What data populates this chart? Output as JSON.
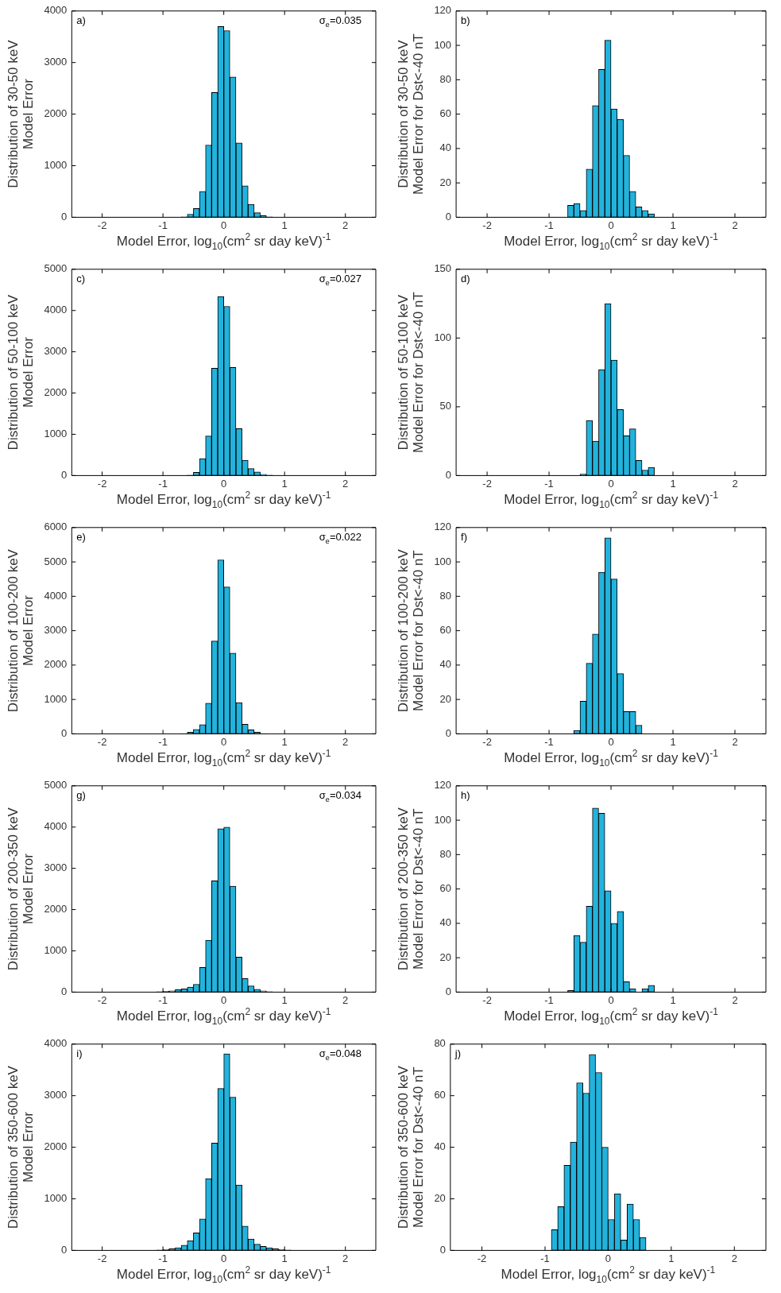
{
  "chart_data": [
    {
      "type": "histogram",
      "bins": [
        -1.2,
        -1.1,
        -1.0,
        -0.9,
        -0.8,
        -0.7,
        -0.6,
        -0.5,
        -0.4,
        -0.3,
        -0.2,
        -0.1,
        0,
        0.1,
        0.2,
        0.3,
        0.4,
        0.5,
        0.6,
        0.7,
        0.8,
        0.9,
        1.0,
        1.1,
        1.2
      ],
      "values": [
        0,
        0,
        0,
        0,
        0,
        10,
        60,
        170,
        500,
        1400,
        2420,
        3700,
        3620,
        2720,
        1440,
        610,
        250,
        90,
        30,
        10,
        0,
        0,
        0,
        0
      ],
      "color": "#22b3dd",
      "xlim": [
        -2.5,
        2.5
      ],
      "xticks": [
        -2,
        -1,
        0,
        1,
        2
      ],
      "ylim": [
        0,
        4000
      ],
      "yticks": [
        0,
        1000,
        2000,
        3000,
        4000
      ],
      "xlabel": "Model Error, log$_{10}$(cm$^{2}$ sr day keV)$^{-1}$",
      "ylabel": "Distribution of 30-50 keV\nModel Error",
      "annotations": [
        "a)",
        "σ$_{e}$=0.035"
      ]
    },
    {
      "type": "histogram",
      "bins": [
        -1.2,
        -1.1,
        -1.0,
        -0.9,
        -0.8,
        -0.7,
        -0.6,
        -0.5,
        -0.4,
        -0.3,
        -0.2,
        -0.1,
        0,
        0.1,
        0.2,
        0.3,
        0.4,
        0.5,
        0.6,
        0.7,
        0.8,
        0.9,
        1.0,
        1.1,
        1.2
      ],
      "values": [
        0,
        0,
        0,
        0,
        0,
        7,
        8,
        4,
        28,
        65,
        86,
        103,
        63,
        57,
        36,
        15,
        6,
        4,
        2,
        0,
        0,
        0,
        0,
        0
      ],
      "color": "#22b3dd",
      "xlim": [
        -2.5,
        2.5
      ],
      "xticks": [
        -2,
        -1,
        0,
        1,
        2
      ],
      "ylim": [
        0,
        120
      ],
      "yticks": [
        0,
        20,
        40,
        60,
        80,
        100,
        120
      ],
      "xlabel": "Model Error, log$_{10}$(cm$^{2}$ sr day keV)$^{-1}$",
      "ylabel": "Distribution of 30-50 keV\nModel Error for Dst<-40 nT",
      "annotations": [
        "b)"
      ]
    },
    {
      "type": "histogram",
      "bins": [
        -1.2,
        -1.1,
        -1.0,
        -0.9,
        -0.8,
        -0.7,
        -0.6,
        -0.5,
        -0.4,
        -0.3,
        -0.2,
        -0.1,
        0,
        0.1,
        0.2,
        0.3,
        0.4,
        0.5,
        0.6,
        0.7,
        0.8,
        0.9,
        1.0,
        1.1,
        1.2
      ],
      "values": [
        0,
        0,
        0,
        0,
        0,
        0,
        10,
        80,
        410,
        960,
        2600,
        4340,
        4100,
        2620,
        1140,
        370,
        170,
        90,
        30,
        10,
        0,
        0,
        0,
        0
      ],
      "color": "#22b3dd",
      "xlim": [
        -2.5,
        2.5
      ],
      "xticks": [
        -2,
        -1,
        0,
        1,
        2
      ],
      "ylim": [
        0,
        5000
      ],
      "yticks": [
        0,
        1000,
        2000,
        3000,
        4000,
        5000
      ],
      "xlabel": "Model Error, log$_{10}$(cm$^{2}$ sr day keV)$^{-1}$",
      "ylabel": "Distribution of 50-100 keV\nModel Error",
      "annotations": [
        "c)",
        "σ$_{e}$=0.027"
      ]
    },
    {
      "type": "histogram",
      "bins": [
        -1.2,
        -1.1,
        -1.0,
        -0.9,
        -0.8,
        -0.7,
        -0.6,
        -0.5,
        -0.4,
        -0.3,
        -0.2,
        -0.1,
        0,
        0.1,
        0.2,
        0.3,
        0.4,
        0.5,
        0.6,
        0.7,
        0.8,
        0.9,
        1.0,
        1.1,
        1.2
      ],
      "values": [
        0,
        0,
        0,
        0,
        0,
        0,
        0,
        1,
        40,
        25,
        77,
        125,
        84,
        48,
        29,
        34,
        11,
        4,
        6,
        0,
        0,
        0,
        0,
        0
      ],
      "color": "#22b3dd",
      "xlim": [
        -2.5,
        2.5
      ],
      "xticks": [
        -2,
        -1,
        0,
        1,
        2
      ],
      "ylim": [
        0,
        150
      ],
      "yticks": [
        0,
        50,
        100,
        150
      ],
      "xlabel": "Model Error, log$_{10}$(cm$^{2}$ sr day keV)$^{-1}$",
      "ylabel": "Distribution of 50-100 keV\nModel Error for Dst<-40 nT",
      "annotations": [
        "d)"
      ]
    },
    {
      "type": "histogram",
      "bins": [
        -1.2,
        -1.1,
        -1.0,
        -0.9,
        -0.8,
        -0.7,
        -0.6,
        -0.5,
        -0.4,
        -0.3,
        -0.2,
        -0.1,
        0,
        0.1,
        0.2,
        0.3,
        0.4,
        0.5,
        0.6,
        0.7,
        0.8,
        0.9,
        1.0,
        1.1,
        1.2
      ],
      "values": [
        0,
        0,
        0,
        0,
        0,
        10,
        50,
        130,
        270,
        890,
        2700,
        5060,
        4270,
        2350,
        910,
        280,
        120,
        50,
        10,
        0,
        0,
        0,
        0,
        0
      ],
      "color": "#22b3dd",
      "xlim": [
        -2.5,
        2.5
      ],
      "xticks": [
        -2,
        -1,
        0,
        1,
        2
      ],
      "ylim": [
        0,
        6000
      ],
      "yticks": [
        0,
        1000,
        2000,
        3000,
        4000,
        5000,
        6000
      ],
      "xlabel": "Model Error, log$_{10}$(cm$^{2}$ sr day keV)$^{-1}$",
      "ylabel": "Distribution of 100-200 keV\nModel Error",
      "annotations": [
        "e)",
        "σ$_{e}$=0.022"
      ]
    },
    {
      "type": "histogram",
      "bins": [
        -1.2,
        -1.1,
        -1.0,
        -0.9,
        -0.8,
        -0.7,
        -0.6,
        -0.5,
        -0.4,
        -0.3,
        -0.2,
        -0.1,
        0,
        0.1,
        0.2,
        0.3,
        0.4,
        0.5,
        0.6,
        0.7,
        0.8,
        0.9,
        1.0,
        1.1,
        1.2
      ],
      "values": [
        0,
        0,
        0,
        0,
        0,
        0,
        2,
        19,
        41,
        58,
        94,
        114,
        90,
        35,
        13,
        13,
        5,
        0,
        0,
        0,
        0,
        0,
        0,
        0
      ],
      "color": "#22b3dd",
      "xlim": [
        -2.5,
        2.5
      ],
      "xticks": [
        -2,
        -1,
        0,
        1,
        2
      ],
      "ylim": [
        0,
        120
      ],
      "yticks": [
        0,
        20,
        40,
        60,
        80,
        100,
        120
      ],
      "xlabel": "Model Error, log$_{10}$(cm$^{2}$ sr day keV)$^{-1}$",
      "ylabel": "Distribution of 100-200 keV\nModel Error for Dst<-40 nT",
      "annotations": [
        "f)"
      ]
    },
    {
      "type": "histogram",
      "bins": [
        -1.2,
        -1.1,
        -1.0,
        -0.9,
        -0.8,
        -0.7,
        -0.6,
        -0.5,
        -0.4,
        -0.3,
        -0.2,
        -0.1,
        0,
        0.1,
        0.2,
        0.3,
        0.4,
        0.5,
        0.6,
        0.7,
        0.8,
        0.9,
        1.0,
        1.1,
        1.2
      ],
      "values": [
        0,
        10,
        20,
        30,
        60,
        80,
        120,
        190,
        600,
        1260,
        2700,
        3960,
        4000,
        2570,
        850,
        330,
        150,
        70,
        30,
        10,
        0,
        0,
        0,
        0
      ],
      "color": "#22b3dd",
      "xlim": [
        -2.5,
        2.5
      ],
      "xticks": [
        -2,
        -1,
        0,
        1,
        2
      ],
      "ylim": [
        0,
        5000
      ],
      "yticks": [
        0,
        1000,
        2000,
        3000,
        4000,
        5000
      ],
      "xlabel": "Model Error, log$_{10}$(cm$^{2}$ sr day keV)$^{-1}$",
      "ylabel": "Distribution of 200-350 keV\nModel Error",
      "annotations": [
        "g)",
        "σ$_{e}$=0.034"
      ]
    },
    {
      "type": "histogram",
      "bins": [
        -1.2,
        -1.1,
        -1.0,
        -0.9,
        -0.8,
        -0.7,
        -0.6,
        -0.5,
        -0.4,
        -0.3,
        -0.2,
        -0.1,
        0,
        0.1,
        0.2,
        0.3,
        0.4,
        0.5,
        0.6,
        0.7,
        0.8,
        0.9,
        1.0,
        1.1,
        1.2
      ],
      "values": [
        0,
        0,
        0,
        0,
        0,
        1,
        33,
        29,
        50,
        107,
        104,
        59,
        40,
        47,
        6,
        2,
        0,
        2,
        4,
        0,
        0,
        0,
        0,
        0
      ],
      "color": "#22b3dd",
      "xlim": [
        -2.5,
        2.5
      ],
      "xticks": [
        -2,
        -1,
        0,
        1,
        2
      ],
      "ylim": [
        0,
        120
      ],
      "yticks": [
        0,
        20,
        40,
        60,
        80,
        100,
        120
      ],
      "xlabel": "Model Error, log$_{10}$(cm$^{2}$ sr day keV)$^{-1}$",
      "ylabel": "Distribution of 200-350 keV\nModel Error for Dst<-40 nT",
      "annotations": [
        "h)"
      ]
    },
    {
      "type": "histogram",
      "bins": [
        -1.2,
        -1.1,
        -1.0,
        -0.9,
        -0.8,
        -0.7,
        -0.6,
        -0.5,
        -0.4,
        -0.3,
        -0.2,
        -0.1,
        0,
        0.1,
        0.2,
        0.3,
        0.4,
        0.5,
        0.6,
        0.7,
        0.8,
        0.9,
        1.0,
        1.1,
        1.2
      ],
      "values": [
        0,
        10,
        20,
        30,
        50,
        100,
        190,
        340,
        610,
        1390,
        2080,
        3140,
        3810,
        2970,
        1270,
        470,
        220,
        120,
        80,
        50,
        30,
        20,
        10,
        0
      ],
      "color": "#22b3dd",
      "xlim": [
        -2.5,
        2.5
      ],
      "xticks": [
        -2,
        -1,
        0,
        1,
        2
      ],
      "ylim": [
        0,
        4000
      ],
      "yticks": [
        0,
        1000,
        2000,
        3000,
        4000
      ],
      "xlabel": "Model Error, log$_{10}$(cm$^{2}$ sr day keV)$^{-1}$",
      "ylabel": "Distribution of 350-600 keV\nModel Error",
      "annotations": [
        "i)",
        "σ$_{e}$=0.048"
      ]
    },
    {
      "type": "histogram",
      "bins": [
        -1.2,
        -1.1,
        -1.0,
        -0.9,
        -0.8,
        -0.7,
        -0.6,
        -0.5,
        -0.4,
        -0.3,
        -0.2,
        -0.1,
        0,
        0.1,
        0.2,
        0.3,
        0.4,
        0.5,
        0.6,
        0.7,
        0.8,
        0.9,
        1.0,
        1.1,
        1.2
      ],
      "values": [
        0,
        0,
        0,
        8,
        17,
        33,
        42,
        65,
        61,
        76,
        69,
        40,
        12,
        22,
        4,
        18,
        12,
        5,
        0,
        0,
        0,
        0,
        0,
        0
      ],
      "color": "#22b3dd",
      "xlim": [
        -2.5,
        2.5
      ],
      "xticks": [
        -2,
        -1,
        0,
        1,
        2
      ],
      "ylim": [
        0,
        80
      ],
      "yticks": [
        0,
        20,
        40,
        60,
        80
      ],
      "xlabel": "Model Error, log$_{10}$(cm$^{2}$ sr day keV)$^{-1}$",
      "ylabel": "Distribution of 350-600 keV\nModel Error for Dst<-40 nT",
      "annotations": [
        "j)"
      ]
    }
  ]
}
